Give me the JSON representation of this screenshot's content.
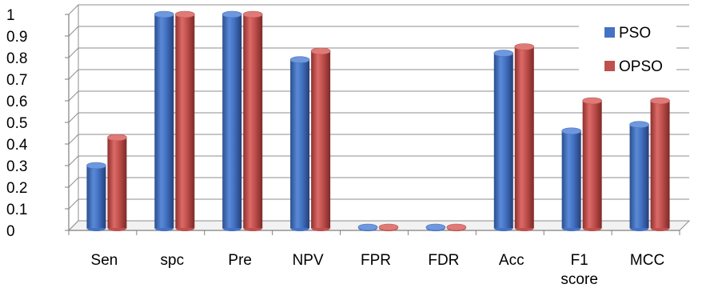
{
  "chart_data": {
    "type": "bar",
    "title": "",
    "xlabel": "",
    "ylabel": "",
    "ylim": [
      0,
      1
    ],
    "yticks": [
      "0",
      "0.1",
      "0.2",
      "0.3",
      "0.4",
      "0.5",
      "0.6",
      "0.7",
      "0.8",
      "0.9",
      "1"
    ],
    "grid": true,
    "style": "3d-cylinder",
    "legend_position": "top-right",
    "categories": [
      "Sen",
      "spc",
      "Pre",
      "NPV",
      "FPR",
      "FDR",
      "Acc",
      "F1 score",
      "MCC"
    ],
    "category_lines": [
      [
        "Sen"
      ],
      [
        "spc"
      ],
      [
        "Pre"
      ],
      [
        "NPV"
      ],
      [
        "FPR"
      ],
      [
        "FDR"
      ],
      [
        "Acc"
      ],
      [
        "F1",
        "score"
      ],
      [
        "MCC"
      ]
    ],
    "series": [
      {
        "name": "PSO",
        "color": "#4472c4",
        "values": [
          0.3,
          1.0,
          1.0,
          0.79,
          0.0,
          0.0,
          0.82,
          0.46,
          0.49
        ]
      },
      {
        "name": "OPSO",
        "color": "#c0504d",
        "values": [
          0.43,
          1.0,
          1.0,
          0.83,
          0.0,
          0.0,
          0.85,
          0.6,
          0.6
        ]
      }
    ]
  }
}
